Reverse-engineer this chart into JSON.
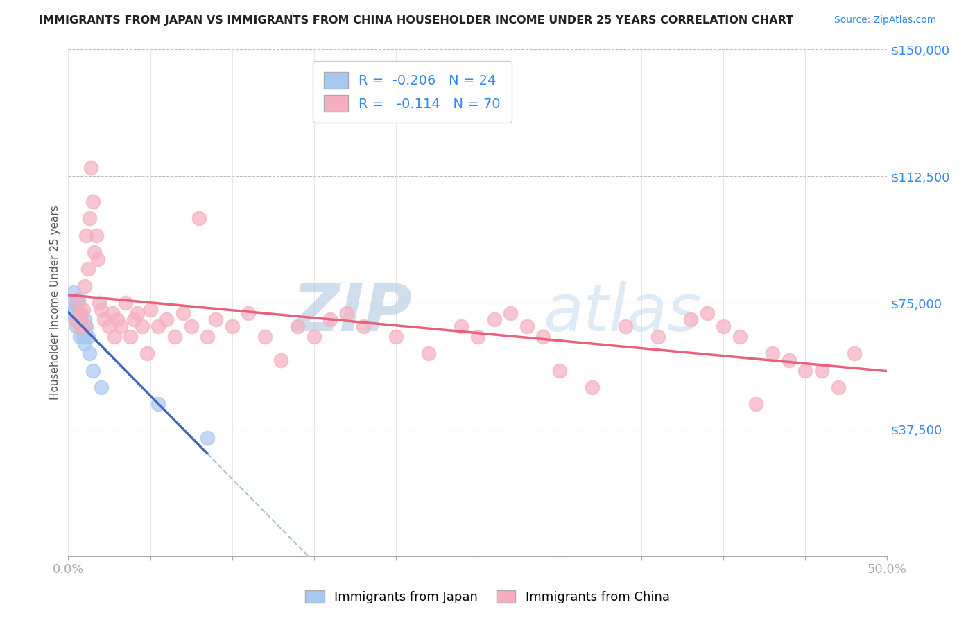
{
  "title": "IMMIGRANTS FROM JAPAN VS IMMIGRANTS FROM CHINA HOUSEHOLDER INCOME UNDER 25 YEARS CORRELATION CHART",
  "source": "Source: ZipAtlas.com",
  "ylabel": "Householder Income Under 25 years",
  "xlim": [
    0.0,
    0.5
  ],
  "ylim": [
    0,
    150000
  ],
  "yticks": [
    0,
    37500,
    75000,
    112500,
    150000
  ],
  "ytick_labels": [
    "",
    "$37,500",
    "$75,000",
    "$112,500",
    "$150,000"
  ],
  "xticks": [
    0.0,
    0.05,
    0.1,
    0.15,
    0.2,
    0.25,
    0.3,
    0.35,
    0.4,
    0.45,
    0.5
  ],
  "background_color": "#ffffff",
  "grid_color": "#bbbbbb",
  "watermark": "ZIPatlas",
  "watermark_color": "#c8dff0",
  "japan_color": "#a8c8f0",
  "china_color": "#f5afc0",
  "japan_line_color": "#4466bb",
  "china_line_color": "#e8607a",
  "japan_dash_color": "#99bbdd",
  "R_japan": -0.206,
  "N_japan": 24,
  "R_china": -0.114,
  "N_china": 70,
  "legend_label_japan": "Immigrants from Japan",
  "legend_label_china": "Immigrants from China",
  "japan_x": [
    0.002,
    0.003,
    0.003,
    0.004,
    0.004,
    0.005,
    0.005,
    0.006,
    0.006,
    0.007,
    0.007,
    0.008,
    0.008,
    0.009,
    0.009,
    0.01,
    0.01,
    0.011,
    0.012,
    0.013,
    0.015,
    0.02,
    0.055,
    0.085
  ],
  "japan_y": [
    75000,
    78000,
    72000,
    73000,
    70000,
    75000,
    68000,
    72000,
    76000,
    70000,
    65000,
    68000,
    72000,
    67000,
    65000,
    70000,
    63000,
    68000,
    65000,
    60000,
    55000,
    50000,
    45000,
    35000
  ],
  "china_x": [
    0.005,
    0.006,
    0.007,
    0.008,
    0.009,
    0.01,
    0.01,
    0.011,
    0.012,
    0.013,
    0.014,
    0.015,
    0.016,
    0.017,
    0.018,
    0.019,
    0.02,
    0.022,
    0.025,
    0.027,
    0.028,
    0.03,
    0.032,
    0.035,
    0.038,
    0.04,
    0.042,
    0.045,
    0.048,
    0.05,
    0.055,
    0.06,
    0.065,
    0.07,
    0.075,
    0.08,
    0.085,
    0.09,
    0.1,
    0.11,
    0.12,
    0.13,
    0.14,
    0.15,
    0.16,
    0.17,
    0.18,
    0.2,
    0.22,
    0.24,
    0.25,
    0.26,
    0.27,
    0.28,
    0.29,
    0.3,
    0.32,
    0.34,
    0.36,
    0.38,
    0.39,
    0.4,
    0.41,
    0.42,
    0.43,
    0.44,
    0.45,
    0.46,
    0.47,
    0.48
  ],
  "china_y": [
    70000,
    75000,
    68000,
    72000,
    73000,
    80000,
    68000,
    95000,
    85000,
    100000,
    115000,
    105000,
    90000,
    95000,
    88000,
    75000,
    73000,
    70000,
    68000,
    72000,
    65000,
    70000,
    68000,
    75000,
    65000,
    70000,
    72000,
    68000,
    60000,
    73000,
    68000,
    70000,
    65000,
    72000,
    68000,
    100000,
    65000,
    70000,
    68000,
    72000,
    65000,
    58000,
    68000,
    65000,
    70000,
    72000,
    68000,
    65000,
    60000,
    68000,
    65000,
    70000,
    72000,
    68000,
    65000,
    55000,
    50000,
    68000,
    65000,
    70000,
    72000,
    68000,
    65000,
    45000,
    60000,
    58000,
    55000,
    55000,
    50000,
    60000
  ]
}
